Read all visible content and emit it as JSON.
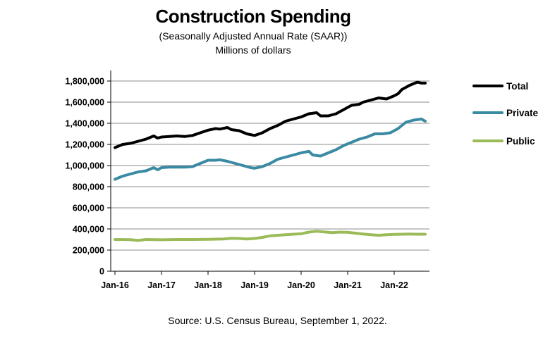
{
  "chart_data": {
    "type": "line",
    "title": "Construction Spending",
    "subtitle": "(Seasonally Adjusted Annual Rate (SAAR))",
    "units": "Millions of dollars",
    "source": "Source: U.S. Census Bureau, September 1, 2022.",
    "xlabel": "",
    "ylabel": "",
    "ylim": [
      0,
      1900000
    ],
    "grid": true,
    "legend_position": "right",
    "y_ticks": [
      0,
      200000,
      400000,
      600000,
      800000,
      1000000,
      1200000,
      1400000,
      1600000,
      1800000
    ],
    "y_tick_labels": [
      "0",
      "200,000",
      "400,000",
      "600,000",
      "800,000",
      "1,000,000",
      "1,200,000",
      "1,400,000",
      "1,600,000",
      "1,800,000"
    ],
    "x_tick_labels": [
      "Jan-16",
      "Jan-17",
      "Jan-18",
      "Jan-19",
      "Jan-20",
      "Jan-21",
      "Jan-22"
    ],
    "x_tick_months": [
      0,
      12,
      24,
      36,
      48,
      60,
      72
    ],
    "x_months_total": 79,
    "series": [
      {
        "name": "Total",
        "color": "#000000",
        "points": [
          [
            0,
            1170000
          ],
          [
            2,
            1200000
          ],
          [
            4,
            1210000
          ],
          [
            6,
            1230000
          ],
          [
            8,
            1250000
          ],
          [
            10,
            1280000
          ],
          [
            11,
            1260000
          ],
          [
            12,
            1270000
          ],
          [
            14,
            1275000
          ],
          [
            16,
            1280000
          ],
          [
            18,
            1275000
          ],
          [
            20,
            1285000
          ],
          [
            22,
            1310000
          ],
          [
            24,
            1335000
          ],
          [
            26,
            1350000
          ],
          [
            27,
            1345000
          ],
          [
            29,
            1360000
          ],
          [
            30,
            1340000
          ],
          [
            32,
            1330000
          ],
          [
            34,
            1300000
          ],
          [
            36,
            1285000
          ],
          [
            38,
            1310000
          ],
          [
            40,
            1350000
          ],
          [
            42,
            1380000
          ],
          [
            44,
            1420000
          ],
          [
            46,
            1440000
          ],
          [
            48,
            1460000
          ],
          [
            50,
            1490000
          ],
          [
            52,
            1500000
          ],
          [
            53,
            1470000
          ],
          [
            55,
            1470000
          ],
          [
            57,
            1490000
          ],
          [
            59,
            1530000
          ],
          [
            61,
            1570000
          ],
          [
            63,
            1580000
          ],
          [
            64,
            1600000
          ],
          [
            66,
            1620000
          ],
          [
            68,
            1640000
          ],
          [
            70,
            1630000
          ],
          [
            72,
            1660000
          ],
          [
            73,
            1680000
          ],
          [
            74,
            1720000
          ],
          [
            76,
            1760000
          ],
          [
            78,
            1790000
          ],
          [
            79,
            1780000
          ],
          [
            80,
            1780000
          ]
        ]
      },
      {
        "name": "Private",
        "color": "#3b8aa3",
        "points": [
          [
            0,
            870000
          ],
          [
            2,
            900000
          ],
          [
            4,
            920000
          ],
          [
            6,
            940000
          ],
          [
            8,
            950000
          ],
          [
            10,
            980000
          ],
          [
            11,
            960000
          ],
          [
            12,
            980000
          ],
          [
            14,
            985000
          ],
          [
            16,
            985000
          ],
          [
            18,
            985000
          ],
          [
            20,
            990000
          ],
          [
            22,
            1020000
          ],
          [
            24,
            1050000
          ],
          [
            26,
            1050000
          ],
          [
            27,
            1055000
          ],
          [
            29,
            1040000
          ],
          [
            31,
            1020000
          ],
          [
            33,
            1000000
          ],
          [
            35,
            980000
          ],
          [
            36,
            975000
          ],
          [
            38,
            990000
          ],
          [
            40,
            1020000
          ],
          [
            42,
            1060000
          ],
          [
            44,
            1080000
          ],
          [
            46,
            1100000
          ],
          [
            48,
            1120000
          ],
          [
            50,
            1135000
          ],
          [
            51,
            1100000
          ],
          [
            53,
            1090000
          ],
          [
            55,
            1120000
          ],
          [
            57,
            1150000
          ],
          [
            59,
            1190000
          ],
          [
            61,
            1220000
          ],
          [
            63,
            1250000
          ],
          [
            65,
            1270000
          ],
          [
            67,
            1300000
          ],
          [
            69,
            1300000
          ],
          [
            71,
            1310000
          ],
          [
            73,
            1350000
          ],
          [
            75,
            1410000
          ],
          [
            77,
            1430000
          ],
          [
            79,
            1440000
          ],
          [
            80,
            1420000
          ]
        ]
      },
      {
        "name": "Public",
        "color": "#9bbb59",
        "points": [
          [
            0,
            300000
          ],
          [
            4,
            298000
          ],
          [
            6,
            292000
          ],
          [
            8,
            300000
          ],
          [
            12,
            297000
          ],
          [
            16,
            300000
          ],
          [
            20,
            300000
          ],
          [
            24,
            302000
          ],
          [
            28,
            305000
          ],
          [
            30,
            312000
          ],
          [
            32,
            310000
          ],
          [
            34,
            305000
          ],
          [
            36,
            310000
          ],
          [
            38,
            320000
          ],
          [
            40,
            335000
          ],
          [
            42,
            340000
          ],
          [
            44,
            345000
          ],
          [
            46,
            350000
          ],
          [
            48,
            355000
          ],
          [
            50,
            370000
          ],
          [
            52,
            378000
          ],
          [
            54,
            372000
          ],
          [
            56,
            365000
          ],
          [
            58,
            370000
          ],
          [
            60,
            368000
          ],
          [
            62,
            360000
          ],
          [
            64,
            352000
          ],
          [
            66,
            345000
          ],
          [
            68,
            340000
          ],
          [
            70,
            345000
          ],
          [
            72,
            348000
          ],
          [
            74,
            350000
          ],
          [
            76,
            352000
          ],
          [
            78,
            350000
          ],
          [
            80,
            350000
          ]
        ]
      }
    ]
  }
}
